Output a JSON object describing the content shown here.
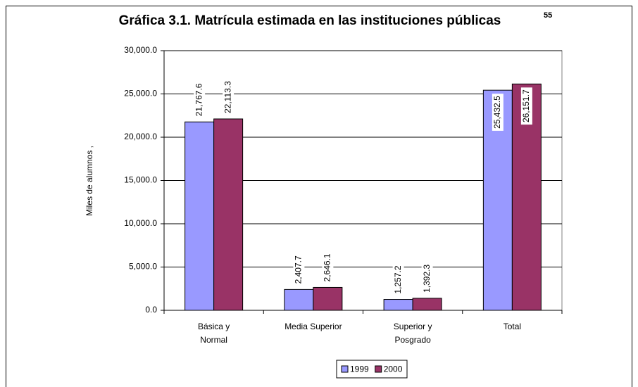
{
  "chart_data": {
    "type": "bar",
    "title": "Gráfica 3.1. Matrícula estimada en las instituciones públicas",
    "title_note": "55",
    "y_label": "Miles de alumnos ,",
    "categories": [
      "Básica y\nNormal",
      "Media Superior",
      "Superior y\nPosgrado",
      "Total"
    ],
    "series": [
      {
        "name": "1999",
        "color": "#9999ff",
        "values": [
          21767.6,
          2407.7,
          1257.2,
          25432.5
        ],
        "value_labels": [
          "21,767.6",
          "2,407.7",
          "1,257.2",
          "25,432.5"
        ]
      },
      {
        "name": "2000",
        "color": "#993366",
        "values": [
          22113.3,
          2646.1,
          1392.3,
          26151.7
        ],
        "value_labels": [
          "22,113.3",
          "2,646.1",
          "1,392.3",
          "26,151.7"
        ]
      }
    ],
    "ylim": [
      0,
      30000
    ],
    "yticks": [
      {
        "value": 0,
        "label": "0.0"
      },
      {
        "value": 5000,
        "label": "5,000.0"
      },
      {
        "value": 10000,
        "label": "10,000.0"
      },
      {
        "value": 15000,
        "label": "15,000.0"
      },
      {
        "value": 20000,
        "label": "20,000.0"
      },
      {
        "value": 25000,
        "label": "25,000.0"
      },
      {
        "value": 30000,
        "label": "30,000.0"
      }
    ],
    "grid": true,
    "legend": "bottom"
  }
}
